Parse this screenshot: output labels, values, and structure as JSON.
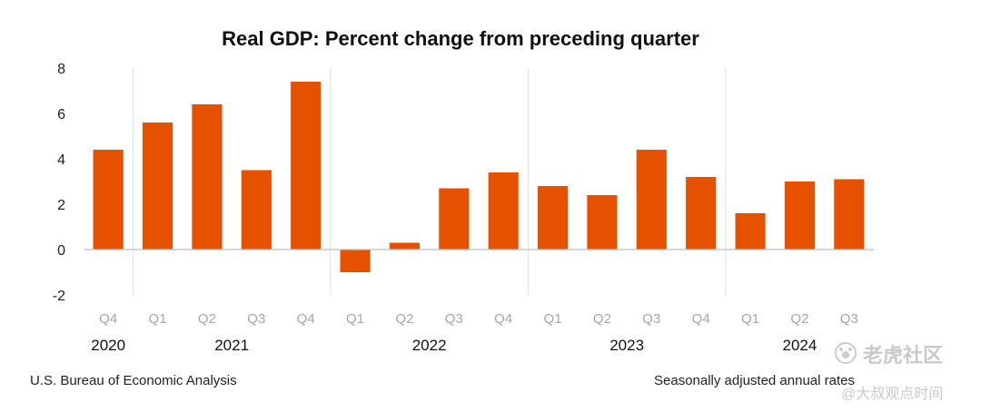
{
  "chart_data": {
    "type": "bar",
    "title": "Real GDP:  Percent change from preceding quarter",
    "xlabel": "",
    "ylabel": "",
    "ylim": [
      -2,
      8
    ],
    "yticks": [
      8,
      6,
      4,
      2,
      0,
      -2
    ],
    "grid": false,
    "bar_color": "#e65100",
    "categories": [
      "Q4",
      "Q1",
      "Q2",
      "Q3",
      "Q4",
      "Q1",
      "Q2",
      "Q3",
      "Q4",
      "Q1",
      "Q2",
      "Q3",
      "Q4",
      "Q1",
      "Q2",
      "Q3"
    ],
    "values": [
      4.4,
      5.6,
      6.4,
      3.5,
      7.4,
      -1.0,
      0.3,
      2.7,
      3.4,
      2.8,
      2.4,
      4.4,
      3.2,
      1.6,
      3.0,
      3.1
    ],
    "year_labels": [
      {
        "label": "2020",
        "first": 0,
        "last": 0
      },
      {
        "label": "2021",
        "first": 1,
        "last": 4
      },
      {
        "label": "2022",
        "first": 5,
        "last": 8
      },
      {
        "label": "2023",
        "first": 9,
        "last": 12
      },
      {
        "label": "2024",
        "first": 13,
        "last": 15
      }
    ]
  },
  "footer": {
    "source": "U.S. Bureau of Economic Analysis",
    "note": "Seasonally adjusted annual rates"
  },
  "watermark": {
    "line1": "老虎社区",
    "line2": "@大叔观点时间"
  }
}
